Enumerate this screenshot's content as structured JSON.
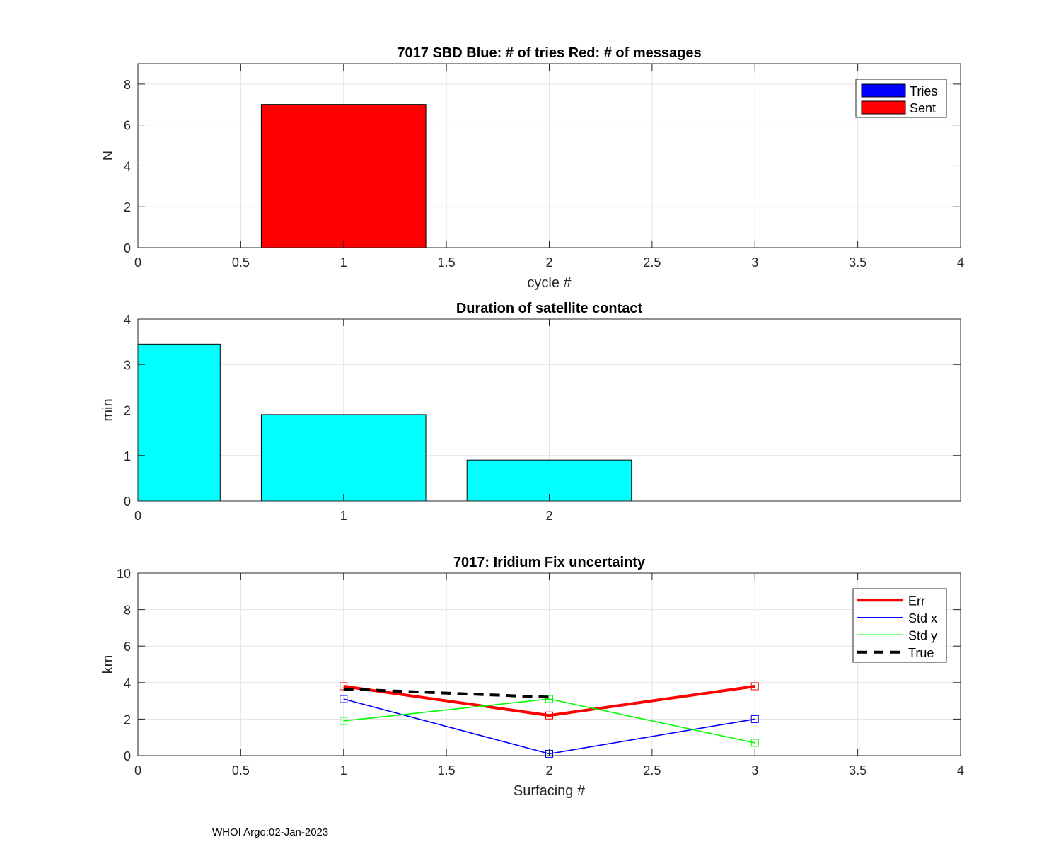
{
  "footer": "WHOI Argo:02-Jan-2023",
  "chart_data": [
    {
      "type": "bar",
      "title": "7017 SBD  Blue: # of tries   Red: # of messages",
      "xlabel": "cycle #",
      "ylabel": "N",
      "xlim": [
        0,
        4
      ],
      "ylim": [
        0,
        9
      ],
      "xticks": [
        "0",
        "0.5",
        "1",
        "1.5",
        "2",
        "2.5",
        "3",
        "3.5",
        "4"
      ],
      "yticks": [
        "0",
        "2",
        "4",
        "6",
        "8"
      ],
      "grid": true,
      "legend_position": "top-right",
      "series": [
        {
          "name": "Tries",
          "color": "#0000ff",
          "x": [
            1
          ],
          "values": [
            7
          ]
        },
        {
          "name": "Sent",
          "color": "#ff0000",
          "x": [
            1
          ],
          "values": [
            7
          ]
        }
      ],
      "bar_width": 0.8
    },
    {
      "type": "bar",
      "title": "Duration of satellite contact",
      "xlabel": "",
      "ylabel": "min",
      "xlim": [
        0,
        4
      ],
      "ylim": [
        0,
        4
      ],
      "xticks": [
        "0",
        "1",
        "2"
      ],
      "yticks": [
        "0",
        "1",
        "2",
        "3",
        "4"
      ],
      "grid": true,
      "series": [
        {
          "name": "duration",
          "color": "#00ffff",
          "x": [
            0,
            1,
            2
          ],
          "values": [
            3.45,
            1.9,
            0.9
          ]
        }
      ],
      "bar_width": 0.8
    },
    {
      "type": "line",
      "title": "7017: Iridium Fix uncertainty",
      "xlabel": "Surfacing #",
      "ylabel": "km",
      "xlim": [
        0,
        4
      ],
      "ylim": [
        0,
        10
      ],
      "xticks": [
        "0",
        "0.5",
        "1",
        "1.5",
        "2",
        "2.5",
        "3",
        "3.5",
        "4"
      ],
      "yticks": [
        "0",
        "2",
        "4",
        "6",
        "8",
        "10"
      ],
      "grid": true,
      "legend_position": "top-right",
      "series": [
        {
          "name": "Err",
          "color": "#ff0000",
          "style": "thick",
          "markers": true,
          "x": [
            1,
            2,
            3
          ],
          "values": [
            3.8,
            2.2,
            3.8
          ]
        },
        {
          "name": "Std x",
          "color": "#0000ff",
          "style": "thin",
          "markers": true,
          "x": [
            1,
            2,
            3
          ],
          "values": [
            3.1,
            0.1,
            2.0
          ]
        },
        {
          "name": "Std y",
          "color": "#00ff00",
          "style": "thin",
          "markers": true,
          "x": [
            1,
            2,
            3
          ],
          "values": [
            1.9,
            3.1,
            0.7
          ]
        },
        {
          "name": "True",
          "color": "#000000",
          "style": "dashed",
          "markers": false,
          "x": [
            1,
            2
          ],
          "values": [
            3.65,
            3.2
          ]
        }
      ]
    }
  ]
}
